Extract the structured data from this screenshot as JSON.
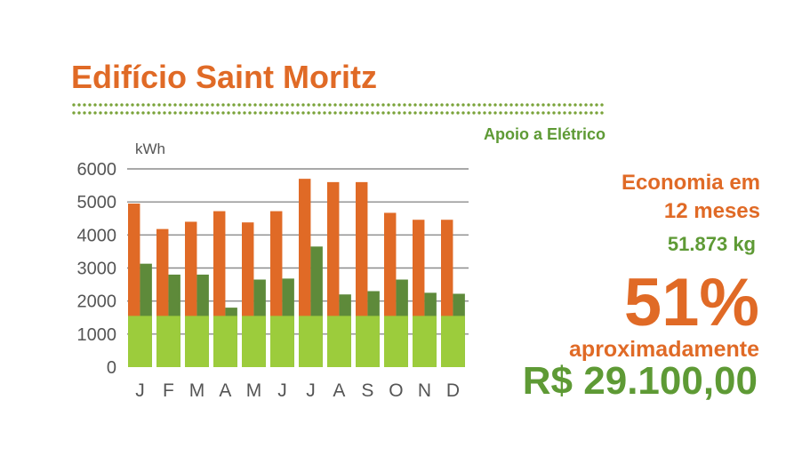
{
  "header": {
    "title": "Edifício Saint Moritz",
    "subtitle": "Apoio a Elétrico"
  },
  "summary": {
    "line1": "Economia em",
    "line2": "12 meses",
    "mass": "51.873 kg",
    "percent": "51%",
    "approx": "aproximadamente",
    "amount": "R$ 29.100,00"
  },
  "colors": {
    "orange": "#e06a26",
    "dark_green": "#5e8a3a",
    "light_green": "#9ccc3c",
    "text_green": "#5e9a35"
  },
  "chart_data": {
    "type": "bar",
    "ylabel": "kWh",
    "ylim": [
      0,
      6000
    ],
    "yticks": [
      0,
      1000,
      2000,
      3000,
      4000,
      5000,
      6000
    ],
    "grid": true,
    "categories": [
      "J",
      "F",
      "M",
      "A",
      "M",
      "J",
      "J",
      "A",
      "S",
      "O",
      "N",
      "D"
    ],
    "series": [
      {
        "values": [
          4950,
          4180,
          4400,
          4720,
          4380,
          4720,
          5700,
          5600,
          5600,
          4670,
          4460,
          4460
        ]
      },
      {
        "values": [
          3130,
          2800,
          2800,
          1800,
          2650,
          2680,
          3650,
          2200,
          2300,
          2650,
          2250,
          2220
        ]
      },
      {
        "values": [
          1550,
          1550,
          1550,
          1550,
          1550,
          1550,
          1550,
          1550,
          1550,
          1550,
          1550,
          1550
        ]
      }
    ]
  }
}
